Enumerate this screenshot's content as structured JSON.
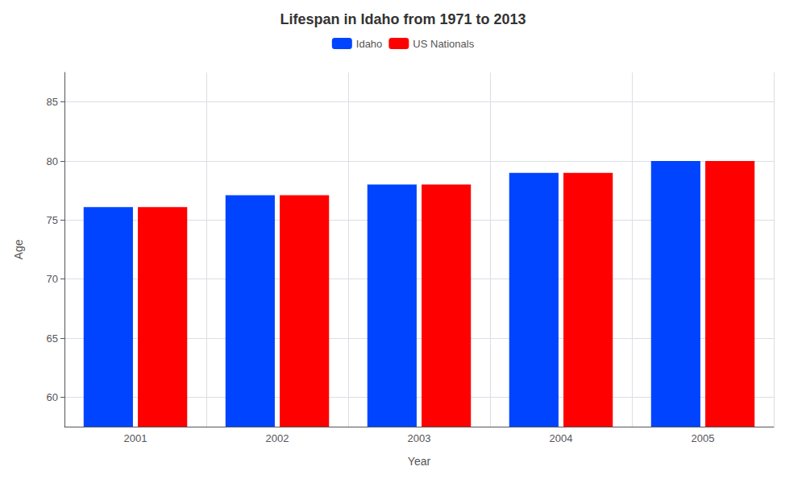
{
  "chart_data": {
    "type": "bar",
    "title": "Lifespan in Idaho from 1971 to 2013",
    "xlabel": "Year",
    "ylabel": "Age",
    "categories": [
      "2001",
      "2002",
      "2003",
      "2004",
      "2005"
    ],
    "series": [
      {
        "name": "Idaho",
        "color": "#0044ff",
        "values": [
          76.1,
          77.1,
          78.0,
          79.0,
          80.0
        ]
      },
      {
        "name": "US Nationals",
        "color": "#ff0000",
        "values": [
          76.1,
          77.1,
          78.0,
          79.0,
          80.0
        ]
      }
    ],
    "ylim": [
      57.5,
      87.5
    ],
    "yticks": [
      60,
      65,
      70,
      75,
      80,
      85
    ],
    "grid": true,
    "legend": "top"
  }
}
